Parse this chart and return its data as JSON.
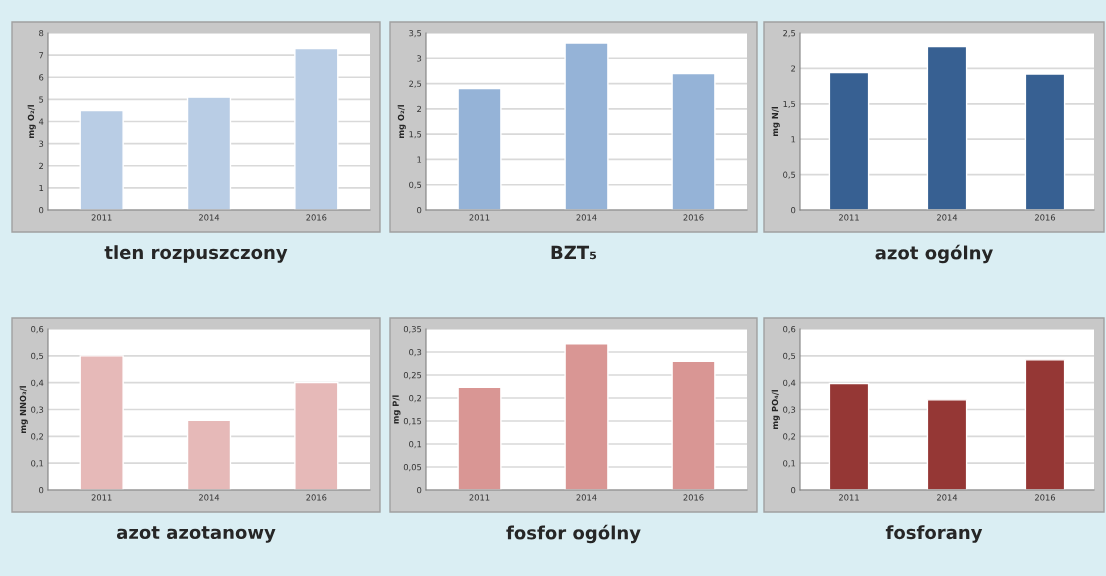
{
  "chart_data": [
    {
      "type": "bar",
      "title": "tlen rozpuszczony",
      "ylabel": "mg O₂/l",
      "categories": [
        "2011",
        "2014",
        "2016"
      ],
      "values": [
        4.5,
        5.1,
        7.3
      ],
      "color": "#b9cde5",
      "ylim": [
        0,
        8
      ],
      "yticks": [
        0,
        1,
        2,
        3,
        4,
        5,
        6,
        7,
        8
      ],
      "grid": "y"
    },
    {
      "type": "bar",
      "title": "BZT₅",
      "ylabel": "mg O₂/l",
      "categories": [
        "2011",
        "2014",
        "2016"
      ],
      "values": [
        2.4,
        3.3,
        2.7
      ],
      "color": "#95b3d7",
      "ylim": [
        0,
        3.5
      ],
      "yticks": [
        0,
        {
          "value": 0.5,
          "label": "0,5"
        },
        1,
        {
          "value": 1.5,
          "label": "1,5"
        },
        2,
        {
          "value": 2.5,
          "label": "2,5"
        },
        3,
        {
          "value": 3.5,
          "label": "3,5"
        }
      ],
      "grid": "y"
    },
    {
      "type": "bar",
      "title": "azot ogólny",
      "ylabel": "mg N/l",
      "categories": [
        "2011",
        "2014",
        "2016"
      ],
      "values": [
        1.94,
        2.31,
        1.92
      ],
      "color": "#376092",
      "ylim": [
        0,
        2.5
      ],
      "yticks": [
        0,
        {
          "value": 0.5,
          "label": "0,5"
        },
        1,
        {
          "value": 1.5,
          "label": "1,5"
        },
        2,
        {
          "value": 2.5,
          "label": "2,5"
        }
      ],
      "grid": "y"
    },
    {
      "type": "bar",
      "title": "azot azotanowy",
      "ylabel": "mg NNO₃/l",
      "categories": [
        "2011",
        "2014",
        "2016"
      ],
      "values": [
        0.5,
        0.26,
        0.4
      ],
      "color": "#e6b9b8",
      "ylim": [
        0,
        0.6
      ],
      "yticks": [
        0,
        {
          "value": 0.1,
          "label": "0,1"
        },
        {
          "value": 0.2,
          "label": "0,2"
        },
        {
          "value": 0.3,
          "label": "0,3"
        },
        {
          "value": 0.4,
          "label": "0,4"
        },
        {
          "value": 0.5,
          "label": "0,5"
        },
        {
          "value": 0.6,
          "label": "0,6"
        }
      ],
      "grid": "y"
    },
    {
      "type": "bar",
      "title": "fosfor ogólny",
      "ylabel": "mg P/l",
      "categories": [
        "2011",
        "2014",
        "2016"
      ],
      "values": [
        0.223,
        0.318,
        0.28
      ],
      "color": "#d99694",
      "ylim": [
        0,
        0.35
      ],
      "yticks": [
        0,
        {
          "value": 0.05,
          "label": "0,05"
        },
        {
          "value": 0.1,
          "label": "0,1"
        },
        {
          "value": 0.15,
          "label": "0,15"
        },
        {
          "value": 0.2,
          "label": "0,2"
        },
        {
          "value": 0.25,
          "label": "0,25"
        },
        {
          "value": 0.3,
          "label": "0,3"
        },
        {
          "value": 0.35,
          "label": "0,35"
        }
      ],
      "grid": "y"
    },
    {
      "type": "bar",
      "title": "fosforany",
      "ylabel": "mg PO₄/l",
      "categories": [
        "2011",
        "2014",
        "2016"
      ],
      "values": [
        0.397,
        0.336,
        0.485
      ],
      "color": "#953735",
      "ylim": [
        0,
        0.6
      ],
      "yticks": [
        0,
        {
          "value": 0.1,
          "label": "0,1"
        },
        {
          "value": 0.2,
          "label": "0,2"
        },
        {
          "value": 0.3,
          "label": "0,3"
        },
        {
          "value": 0.4,
          "label": "0,4"
        },
        {
          "value": 0.5,
          "label": "0,5"
        },
        {
          "value": 0.6,
          "label": "0,6"
        }
      ],
      "grid": "y"
    }
  ]
}
